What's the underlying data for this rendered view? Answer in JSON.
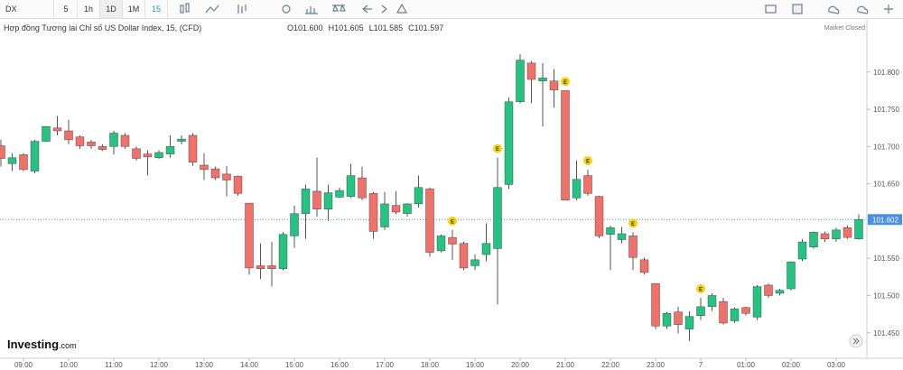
{
  "toolbar": {
    "symbol": "DX",
    "intervals": [
      "5",
      "1h",
      "1D",
      "1M",
      "15"
    ]
  },
  "logo": {
    "brand": "Investing",
    "suffix": ".com"
  },
  "chart_data": {
    "type": "candlestick",
    "title": "Hợp đồng Tương lai Chỉ số US Dollar Index, 15, (CFD)",
    "ohlc_header": [
      {
        "key": "O",
        "value": "101.600"
      },
      {
        "key": "H",
        "value": "101.605"
      },
      {
        "key": "L",
        "value": "101.585"
      },
      {
        "key": "C",
        "value": "101.597"
      }
    ],
    "market_status": "Market Closed",
    "categories": [
      null,
      null,
      "09:00",
      null,
      null,
      null,
      "10:00",
      null,
      null,
      null,
      "11:00",
      null,
      null,
      null,
      "12:00",
      null,
      null,
      null,
      "13:00",
      null,
      null,
      null,
      "14:00",
      null,
      null,
      null,
      "15:00",
      null,
      null,
      null,
      "16:00",
      null,
      null,
      null,
      "17:00",
      null,
      null,
      null,
      "18:00",
      null,
      null,
      null,
      "19:00",
      null,
      null,
      null,
      "20:00",
      null,
      null,
      null,
      "21:00",
      null,
      null,
      null,
      "22:00",
      null,
      null,
      null,
      "23:00",
      null,
      null,
      null,
      "7",
      null,
      null,
      null,
      "01:00",
      null,
      null,
      null,
      "02:00",
      null,
      null,
      null,
      "03:00",
      null,
      null
    ],
    "open": [
      101.701,
      101.677,
      101.689,
      101.667,
      101.707,
      101.725,
      101.721,
      101.713,
      101.706,
      101.7,
      101.7,
      101.715,
      101.697,
      101.69,
      101.685,
      101.69,
      101.707,
      101.715,
      101.675,
      101.67,
      101.663,
      101.66,
      101.624,
      101.54,
      101.54,
      101.536,
      101.58,
      101.61,
      101.64,
      101.616,
      101.632,
      101.633,
      101.658,
      101.637,
      101.592,
      101.621,
      101.61,
      101.623,
      101.643,
      101.56,
      101.578,
      101.57,
      101.54,
      101.555,
      101.563,
      101.649,
      101.76,
      101.812,
      101.788,
      101.788,
      101.775,
      101.631,
      101.661,
      101.633,
      101.582,
      101.575,
      101.58,
      101.548,
      101.516,
      101.459,
      101.478,
      101.455,
      101.473,
      101.485,
      101.492,
      101.466,
      101.484,
      101.471,
      101.514,
      101.503,
      101.509,
      101.549,
      101.565,
      101.583,
      101.576,
      101.591,
      101.576
    ],
    "high": [
      101.709,
      101.691,
      101.691,
      101.709,
      101.727,
      101.741,
      101.736,
      101.715,
      101.709,
      101.703,
      101.721,
      101.718,
      101.7,
      101.695,
      101.695,
      101.715,
      101.715,
      101.718,
      101.691,
      101.673,
      101.674,
      101.661,
      101.624,
      101.57,
      101.572,
      101.585,
      101.621,
      101.649,
      101.685,
      101.649,
      101.645,
      101.677,
      101.673,
      101.639,
      101.639,
      101.64,
      101.624,
      101.661,
      101.645,
      101.582,
      101.588,
      101.572,
      101.555,
      101.597,
      101.685,
      101.766,
      101.824,
      101.815,
      101.812,
      101.804,
      101.775,
      101.681,
      101.669,
      101.634,
      101.594,
      101.592,
      101.585,
      101.551,
      101.516,
      101.478,
      101.485,
      101.479,
      101.497,
      101.503,
      101.497,
      101.484,
      101.485,
      101.514,
      101.516,
      101.509,
      101.546,
      101.576,
      101.586,
      101.586,
      101.591,
      101.594,
      101.609
    ],
    "low": [
      101.673,
      101.667,
      101.667,
      101.664,
      101.706,
      101.715,
      101.703,
      101.697,
      101.697,
      101.694,
      101.689,
      101.697,
      101.681,
      101.661,
      101.683,
      101.685,
      101.703,
      101.674,
      101.655,
      101.655,
      101.633,
      101.634,
      101.528,
      101.522,
      101.512,
      101.534,
      101.564,
      101.576,
      101.606,
      101.6,
      101.631,
      101.631,
      101.628,
      101.576,
      101.588,
      101.609,
      101.606,
      101.618,
      101.552,
      101.558,
      101.548,
      101.534,
      101.534,
      101.546,
      101.488,
      101.643,
      101.758,
      101.758,
      101.727,
      101.752,
      101.628,
      101.628,
      101.634,
      101.577,
      101.534,
      101.57,
      101.534,
      101.528,
      101.455,
      101.455,
      101.449,
      101.439,
      101.467,
      101.479,
      101.461,
      101.463,
      101.473,
      101.467,
      101.497,
      101.5,
      101.507,
      101.546,
      101.563,
      101.572,
      101.572,
      101.576,
      101.575
    ],
    "close": [
      101.684,
      101.685,
      101.669,
      101.707,
      101.727,
      101.721,
      101.709,
      101.701,
      101.701,
      101.696,
      101.718,
      101.7,
      101.684,
      101.686,
      101.692,
      101.7,
      101.71,
      101.679,
      101.669,
      101.658,
      101.655,
      101.637,
      101.537,
      101.536,
      101.536,
      101.582,
      101.61,
      101.643,
      101.616,
      101.638,
      101.641,
      101.661,
      101.631,
      101.586,
      101.623,
      101.612,
      101.623,
      101.645,
      101.558,
      101.58,
      101.569,
      101.537,
      101.548,
      101.57,
      101.645,
      101.76,
      101.816,
      101.79,
      101.792,
      101.776,
      101.628,
      101.656,
      101.637,
      101.58,
      101.591,
      101.583,
      101.551,
      101.531,
      101.459,
      101.476,
      101.461,
      101.472,
      101.485,
      101.5,
      101.463,
      101.482,
      101.476,
      101.512,
      101.5,
      101.507,
      101.545,
      101.572,
      101.585,
      101.576,
      101.588,
      101.578,
      101.602
    ],
    "up_color": "#26c281",
    "down_color": "#f0706a",
    "ylim": [
      101.417,
      101.87
    ],
    "yticks": [
      {
        "value": 101.45,
        "label": "101.450"
      },
      {
        "value": 101.5,
        "label": "101.500"
      },
      {
        "value": 101.55,
        "label": "101.550"
      },
      {
        "value": 101.6,
        "label": "101.600"
      },
      {
        "value": 101.65,
        "label": "101.650"
      },
      {
        "value": 101.7,
        "label": "101.700"
      },
      {
        "value": 101.75,
        "label": "101.750"
      },
      {
        "value": 101.8,
        "label": "101.800"
      }
    ],
    "last_price": 101.602,
    "last_price_color": "#4a90e2",
    "events": {
      "label": "E",
      "color": "#f5d40f",
      "at": [
        40,
        44,
        50,
        52,
        56,
        62
      ]
    }
  }
}
